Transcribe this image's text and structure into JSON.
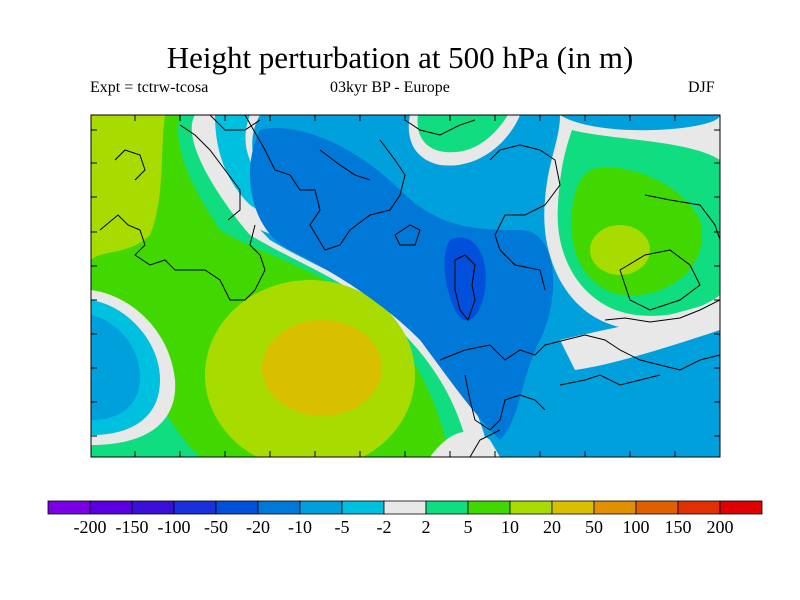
{
  "title": "Height perturbation at 500 hPa (in m)",
  "subtitle_left": "Expt = tctrw-tcosa",
  "subtitle_center": "03kyr BP - Europe",
  "subtitle_right": "DJF",
  "colorbar": {
    "colors": [
      "#7a00e6",
      "#5a00e0",
      "#3a10d8",
      "#1a30dc",
      "#0050dc",
      "#0078d8",
      "#00a0dc",
      "#00c0e0",
      "#e8e8e8",
      "#10dc80",
      "#40d800",
      "#a8dc00",
      "#d8c000",
      "#e09000",
      "#e06000",
      "#e03000",
      "#e00000"
    ],
    "labels": [
      "-200",
      "-150",
      "-100",
      "-50",
      "-20",
      "-10",
      "-5",
      "-2",
      "2",
      "5",
      "10",
      "20",
      "50",
      "100",
      "150",
      "200"
    ]
  }
}
